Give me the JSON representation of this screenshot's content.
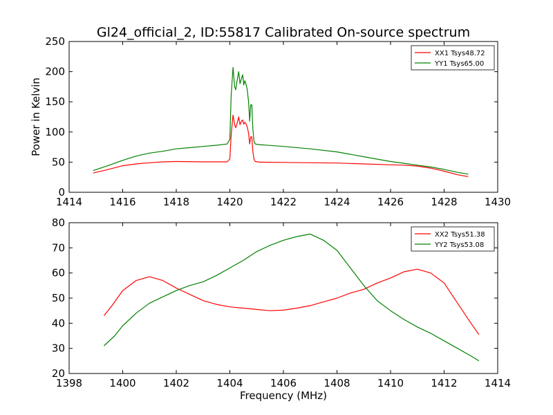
{
  "figure_title": "Gl24_official_2, ID:55817 Calibrated On-source spectrum",
  "chart_data": [
    {
      "type": "line",
      "ylabel": "Power in Kelvin",
      "xlabel": "",
      "xlim": [
        1414,
        1430
      ],
      "ylim": [
        0,
        250
      ],
      "xticks": [
        "1414",
        "1416",
        "1418",
        "1420",
        "1422",
        "1424",
        "1426",
        "1428",
        "1430"
      ],
      "yticks": [
        "0",
        "50",
        "100",
        "150",
        "200",
        "250"
      ],
      "legend_position": "top-right",
      "series": [
        {
          "name": "XX1 Tsys48.72",
          "color": "#ff0000",
          "points": [
            [
              1414.9,
              32
            ],
            [
              1415.3,
              36
            ],
            [
              1416,
              44
            ],
            [
              1416.5,
              47
            ],
            [
              1417,
              49
            ],
            [
              1417.5,
              50.5
            ],
            [
              1418,
              51
            ],
            [
              1419,
              50.5
            ],
            [
              1419.9,
              50.5
            ],
            [
              1420.0,
              55
            ],
            [
              1420.05,
              95
            ],
            [
              1420.12,
              128
            ],
            [
              1420.18,
              112
            ],
            [
              1420.22,
              107
            ],
            [
              1420.27,
              114
            ],
            [
              1420.33,
              125
            ],
            [
              1420.38,
              112
            ],
            [
              1420.43,
              118
            ],
            [
              1420.48,
              120
            ],
            [
              1420.52,
              113
            ],
            [
              1420.56,
              116
            ],
            [
              1420.6,
              114
            ],
            [
              1420.65,
              108
            ],
            [
              1420.7,
              98
            ],
            [
              1420.74,
              80
            ],
            [
              1420.78,
              92
            ],
            [
              1420.82,
              92
            ],
            [
              1420.86,
              68
            ],
            [
              1420.9,
              55
            ],
            [
              1420.95,
              51
            ],
            [
              1421.1,
              50
            ],
            [
              1422,
              49.5
            ],
            [
              1423,
              49
            ],
            [
              1424,
              48.5
            ],
            [
              1425,
              47
            ],
            [
              1426,
              45.5
            ],
            [
              1426.5,
              45
            ],
            [
              1427,
              43.5
            ],
            [
              1427.5,
              40
            ],
            [
              1428,
              35
            ],
            [
              1428.5,
              29
            ],
            [
              1428.9,
              26
            ]
          ]
        },
        {
          "name": "YY1 Tsys65.00",
          "color": "#008000",
          "points": [
            [
              1414.9,
              36
            ],
            [
              1415.5,
              45
            ],
            [
              1416,
              53
            ],
            [
              1416.5,
              60
            ],
            [
              1417,
              65
            ],
            [
              1417.5,
              68
            ],
            [
              1418,
              72
            ],
            [
              1418.5,
              74
            ],
            [
              1419,
              76
            ],
            [
              1419.5,
              78
            ],
            [
              1419.9,
              80
            ],
            [
              1420.0,
              88
            ],
            [
              1420.05,
              160
            ],
            [
              1420.12,
              207
            ],
            [
              1420.18,
              175
            ],
            [
              1420.22,
              170
            ],
            [
              1420.27,
              185
            ],
            [
              1420.33,
              200
            ],
            [
              1420.38,
              180
            ],
            [
              1420.43,
              188
            ],
            [
              1420.48,
              195
            ],
            [
              1420.52,
              178
            ],
            [
              1420.56,
              185
            ],
            [
              1420.6,
              180
            ],
            [
              1420.65,
              170
            ],
            [
              1420.7,
              150
            ],
            [
              1420.74,
              118
            ],
            [
              1420.78,
              145
            ],
            [
              1420.82,
              145
            ],
            [
              1420.86,
              105
            ],
            [
              1420.9,
              85
            ],
            [
              1420.95,
              80
            ],
            [
              1421.1,
              79
            ],
            [
              1422,
              76
            ],
            [
              1423,
              72
            ],
            [
              1424,
              67
            ],
            [
              1425,
              59
            ],
            [
              1426,
              51
            ],
            [
              1426.5,
              48
            ],
            [
              1427,
              45
            ],
            [
              1427.5,
              42
            ],
            [
              1428,
              38
            ],
            [
              1428.5,
              33
            ],
            [
              1428.9,
              30
            ]
          ]
        }
      ]
    },
    {
      "type": "line",
      "ylabel": "",
      "xlabel": "Frequency (MHz)",
      "xlim": [
        1398,
        1414
      ],
      "ylim": [
        20,
        80
      ],
      "xticks": [
        "1398",
        "1400",
        "1402",
        "1404",
        "1406",
        "1408",
        "1410",
        "1412",
        "1414"
      ],
      "yticks": [
        "20",
        "30",
        "40",
        "50",
        "60",
        "70",
        "80"
      ],
      "legend_position": "top-right",
      "series": [
        {
          "name": "XX2 Tsys51.38",
          "color": "#ff0000",
          "points": [
            [
              1399.3,
              43
            ],
            [
              1399.6,
              47
            ],
            [
              1400,
              53
            ],
            [
              1400.5,
              57
            ],
            [
              1401,
              58.5
            ],
            [
              1401.5,
              57
            ],
            [
              1402,
              54
            ],
            [
              1402.5,
              51.5
            ],
            [
              1403,
              49
            ],
            [
              1403.5,
              47.5
            ],
            [
              1404,
              46.5
            ],
            [
              1404.5,
              46
            ],
            [
              1405,
              45.5
            ],
            [
              1405.5,
              45
            ],
            [
              1406,
              45.2
            ],
            [
              1406.5,
              46
            ],
            [
              1407,
              47
            ],
            [
              1407.5,
              48.5
            ],
            [
              1408,
              50
            ],
            [
              1408.5,
              52
            ],
            [
              1409,
              53.5
            ],
            [
              1409.5,
              56
            ],
            [
              1410,
              58
            ],
            [
              1410.5,
              60.5
            ],
            [
              1411,
              61.5
            ],
            [
              1411.5,
              60
            ],
            [
              1412,
              56
            ],
            [
              1412.5,
              48
            ],
            [
              1413,
              40
            ],
            [
              1413.3,
              35.5
            ]
          ]
        },
        {
          "name": "YY2 Tsys53.08",
          "color": "#008000",
          "points": [
            [
              1399.3,
              31
            ],
            [
              1399.7,
              35
            ],
            [
              1400,
              39
            ],
            [
              1400.5,
              44
            ],
            [
              1401,
              48
            ],
            [
              1401.5,
              50.5
            ],
            [
              1402,
              53
            ],
            [
              1402.5,
              55
            ],
            [
              1403,
              56.5
            ],
            [
              1403.5,
              59
            ],
            [
              1404,
              62
            ],
            [
              1404.5,
              65
            ],
            [
              1405,
              68.5
            ],
            [
              1405.5,
              71
            ],
            [
              1406,
              73
            ],
            [
              1406.5,
              74.5
            ],
            [
              1407,
              75.5
            ],
            [
              1407.5,
              73
            ],
            [
              1408,
              69
            ],
            [
              1408.5,
              62
            ],
            [
              1409,
              55
            ],
            [
              1409.5,
              49
            ],
            [
              1410,
              45
            ],
            [
              1410.5,
              41.5
            ],
            [
              1411,
              38.5
            ],
            [
              1411.5,
              36
            ],
            [
              1412,
              33
            ],
            [
              1412.5,
              30
            ],
            [
              1413,
              27
            ],
            [
              1413.3,
              25
            ]
          ]
        }
      ]
    }
  ]
}
